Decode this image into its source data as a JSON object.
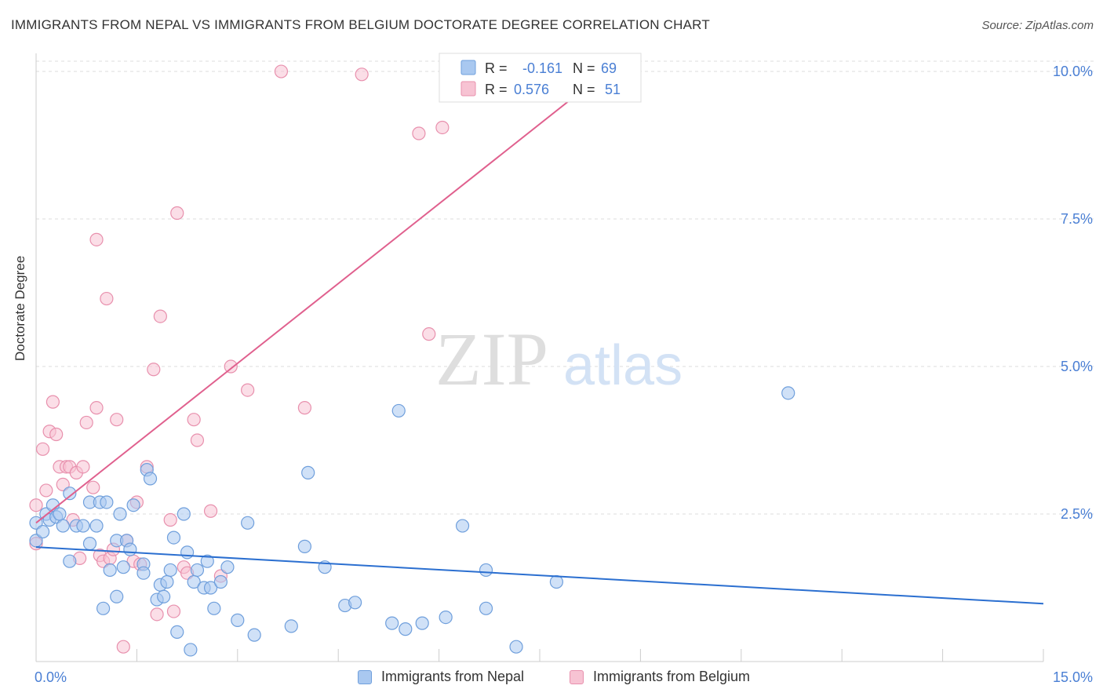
{
  "header": {
    "title": "IMMIGRANTS FROM NEPAL VS IMMIGRANTS FROM BELGIUM DOCTORATE DEGREE CORRELATION CHART",
    "source": "Source: ZipAtlas.com"
  },
  "watermark": {
    "zip": "ZIP",
    "atlas": "atlas"
  },
  "colors": {
    "nepal_fill": "#a9c8f0",
    "nepal_stroke": "#6f9fdc",
    "nepal_line": "#2b6fd0",
    "belgium_fill": "#f7c3d3",
    "belgium_stroke": "#e890ad",
    "belgium_line": "#e0608e",
    "axis_text": "#4a7fd4",
    "grid": "#dddddd"
  },
  "legend": {
    "r_label": "R =",
    "n_label": "N =",
    "rows": [
      {
        "series": "Immigrants from Nepal",
        "r": "-0.161",
        "n": "69"
      },
      {
        "series": "Immigrants from Belgium",
        "r": "0.576",
        "n": "51"
      }
    ]
  },
  "chart_data": {
    "type": "scatter",
    "title": "IMMIGRANTS FROM NEPAL VS IMMIGRANTS FROM BELGIUM DOCTORATE DEGREE CORRELATION CHART",
    "xlabel": "",
    "ylabel": "Doctorate Degree",
    "xlim": [
      0,
      15
    ],
    "ylim": [
      0,
      10.2
    ],
    "x_tick_labels": [
      "0.0%",
      "15.0%"
    ],
    "y_ticks": [
      2.5,
      5.0,
      7.5,
      10.0
    ],
    "y_tick_labels": [
      "2.5%",
      "5.0%",
      "7.5%",
      "10.0%"
    ],
    "grid": true,
    "series": [
      {
        "name": "Immigrants from Nepal",
        "trend": {
          "x": [
            0,
            15
          ],
          "y": [
            1.94,
            0.98
          ]
        },
        "points": [
          [
            0.0,
            2.05
          ],
          [
            0.0,
            2.35
          ],
          [
            0.1,
            2.2
          ],
          [
            0.15,
            2.5
          ],
          [
            0.2,
            2.4
          ],
          [
            0.25,
            2.65
          ],
          [
            0.3,
            2.45
          ],
          [
            0.35,
            2.5
          ],
          [
            0.4,
            2.3
          ],
          [
            0.5,
            2.85
          ],
          [
            0.5,
            1.7
          ],
          [
            0.6,
            2.3
          ],
          [
            0.7,
            2.3
          ],
          [
            0.8,
            2.7
          ],
          [
            0.8,
            2.0
          ],
          [
            0.9,
            2.3
          ],
          [
            0.95,
            2.7
          ],
          [
            1.0,
            0.9
          ],
          [
            1.05,
            2.7
          ],
          [
            1.1,
            1.55
          ],
          [
            1.2,
            2.05
          ],
          [
            1.2,
            1.1
          ],
          [
            1.25,
            2.5
          ],
          [
            1.3,
            1.6
          ],
          [
            1.35,
            2.05
          ],
          [
            1.4,
            1.9
          ],
          [
            1.45,
            2.65
          ],
          [
            1.6,
            1.65
          ],
          [
            1.6,
            1.5
          ],
          [
            1.65,
            3.25
          ],
          [
            1.7,
            3.1
          ],
          [
            1.8,
            1.05
          ],
          [
            1.85,
            1.3
          ],
          [
            1.9,
            1.1
          ],
          [
            1.95,
            1.35
          ],
          [
            2.0,
            1.55
          ],
          [
            2.05,
            2.1
          ],
          [
            2.1,
            0.5
          ],
          [
            2.2,
            2.5
          ],
          [
            2.25,
            1.85
          ],
          [
            2.3,
            0.2
          ],
          [
            2.35,
            1.35
          ],
          [
            2.4,
            1.55
          ],
          [
            2.5,
            1.25
          ],
          [
            2.55,
            1.7
          ],
          [
            2.6,
            1.25
          ],
          [
            2.65,
            0.9
          ],
          [
            2.75,
            1.35
          ],
          [
            2.85,
            1.6
          ],
          [
            3.0,
            0.7
          ],
          [
            3.15,
            2.35
          ],
          [
            3.25,
            0.45
          ],
          [
            3.8,
            0.6
          ],
          [
            4.0,
            1.95
          ],
          [
            4.05,
            3.2
          ],
          [
            4.3,
            1.6
          ],
          [
            4.6,
            0.95
          ],
          [
            4.75,
            1.0
          ],
          [
            5.3,
            0.65
          ],
          [
            5.4,
            4.25
          ],
          [
            5.5,
            0.55
          ],
          [
            5.75,
            0.65
          ],
          [
            6.1,
            0.75
          ],
          [
            6.35,
            2.3
          ],
          [
            6.7,
            0.9
          ],
          [
            6.7,
            1.55
          ],
          [
            7.15,
            0.25
          ],
          [
            7.75,
            1.35
          ],
          [
            11.2,
            4.55
          ]
        ]
      },
      {
        "name": "Immigrants from Belgium",
        "trend": {
          "x": [
            0,
            8.1
          ],
          "y": [
            2.35,
            9.65
          ]
        },
        "points": [
          [
            0.0,
            2.0
          ],
          [
            0.0,
            2.65
          ],
          [
            0.1,
            3.6
          ],
          [
            0.15,
            2.9
          ],
          [
            0.2,
            3.9
          ],
          [
            0.25,
            4.4
          ],
          [
            0.3,
            3.85
          ],
          [
            0.35,
            3.3
          ],
          [
            0.4,
            3.0
          ],
          [
            0.45,
            3.3
          ],
          [
            0.5,
            3.3
          ],
          [
            0.55,
            2.4
          ],
          [
            0.6,
            3.2
          ],
          [
            0.65,
            1.75
          ],
          [
            0.7,
            3.3
          ],
          [
            0.75,
            4.05
          ],
          [
            0.85,
            2.95
          ],
          [
            0.9,
            4.3
          ],
          [
            0.9,
            7.15
          ],
          [
            0.95,
            1.8
          ],
          [
            1.0,
            1.7
          ],
          [
            1.05,
            6.15
          ],
          [
            1.1,
            1.75
          ],
          [
            1.15,
            1.9
          ],
          [
            1.2,
            4.1
          ],
          [
            1.3,
            0.25
          ],
          [
            1.35,
            2.05
          ],
          [
            1.45,
            1.7
          ],
          [
            1.5,
            2.7
          ],
          [
            1.55,
            1.65
          ],
          [
            1.65,
            3.3
          ],
          [
            1.75,
            4.95
          ],
          [
            1.8,
            0.8
          ],
          [
            1.85,
            5.85
          ],
          [
            2.0,
            2.4
          ],
          [
            2.05,
            0.85
          ],
          [
            2.1,
            7.6
          ],
          [
            2.2,
            1.6
          ],
          [
            2.25,
            1.5
          ],
          [
            2.35,
            4.1
          ],
          [
            2.4,
            3.75
          ],
          [
            2.6,
            2.55
          ],
          [
            2.75,
            1.45
          ],
          [
            2.9,
            5.0
          ],
          [
            3.15,
            4.6
          ],
          [
            3.65,
            10.0
          ],
          [
            4.0,
            4.3
          ],
          [
            4.85,
            9.95
          ],
          [
            5.7,
            8.95
          ],
          [
            5.85,
            5.55
          ],
          [
            6.05,
            9.05
          ]
        ]
      }
    ]
  }
}
